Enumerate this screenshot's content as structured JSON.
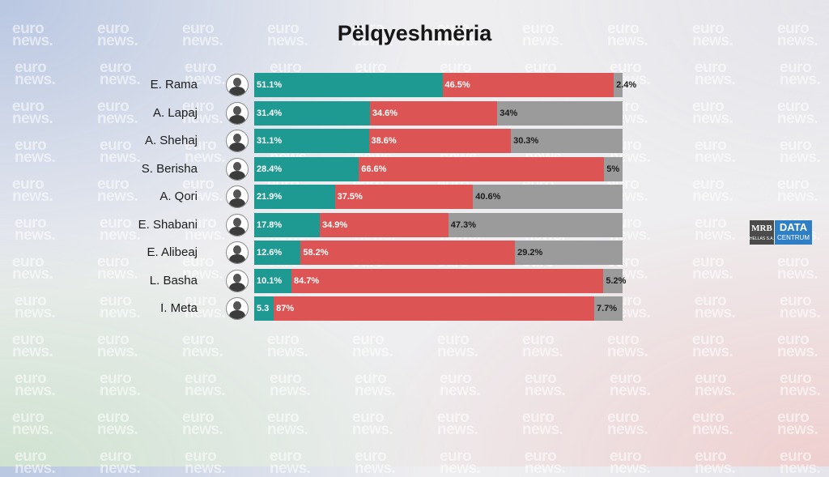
{
  "chart_data": {
    "type": "bar",
    "stacked": true,
    "orientation": "horizontal",
    "title": "Pëlqyeshmëria",
    "categories": [
      "E. Rama",
      "A. Lapaj",
      "A. Shehaj",
      "S. Berisha",
      "A. Qori",
      "E. Shabani",
      "E. Alibeaj",
      "L. Basha",
      "I. Meta"
    ],
    "series": [
      {
        "color": "#1f9a92",
        "values": [
          51.1,
          31.4,
          31.1,
          28.4,
          21.9,
          17.8,
          12.6,
          10.1,
          5.3
        ],
        "labels": [
          "51.1%",
          "31.4%",
          "31.1%",
          "28.4%",
          "21.9%",
          "17.8%",
          "12.6%",
          "10.1%",
          "5.3"
        ]
      },
      {
        "color": "#dd5454",
        "values": [
          46.5,
          34.6,
          38.6,
          66.6,
          37.5,
          34.9,
          58.2,
          84.7,
          87
        ],
        "labels": [
          "46.5%",
          "34.6%",
          "38.6%",
          "66.6%",
          "37.5%",
          "34.9%",
          "58.2%",
          "84.7%",
          "87%"
        ]
      },
      {
        "color": "#9b9b9b",
        "values": [
          2.4,
          34,
          30.3,
          5,
          40.6,
          47.3,
          29.2,
          5.2,
          7.7
        ],
        "labels": [
          "2.4%",
          "34%",
          "30.3%",
          "5%",
          "40.6%",
          "47.3%",
          "29.2%",
          "5.2%",
          "7.7%"
        ]
      }
    ],
    "xlim": [
      0,
      100
    ],
    "grid": false,
    "legend": "none"
  },
  "watermark": {
    "line1": "euro",
    "line2": "news."
  },
  "logo": {
    "mrb": "MRB",
    "mrb_sub": "HELLAS S.A.",
    "data": "DATA",
    "centrum": "CENTRUM"
  }
}
